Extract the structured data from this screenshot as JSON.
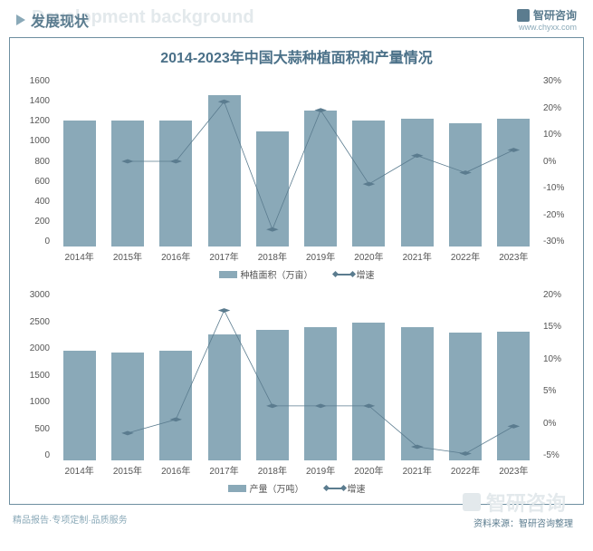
{
  "header": {
    "title": "发展现状",
    "bg_text": "Development background",
    "brand_name": "智研咨询",
    "brand_url": "www.chyxx.com"
  },
  "main_title": "2014-2023年中国大蒜种植面积和产量情况",
  "categories": [
    "2014年",
    "2015年",
    "2016年",
    "2017年",
    "2018年",
    "2019年",
    "2020年",
    "2021年",
    "2022年",
    "2023年"
  ],
  "chart_top": {
    "type": "bar+line",
    "bar_label": "种植面积（万亩）",
    "line_label": "增速",
    "y_left": {
      "min": 0,
      "max": 1600,
      "step": 200,
      "ticks": [
        "1600",
        "1400",
        "1200",
        "1000",
        "800",
        "600",
        "400",
        "200",
        "0"
      ]
    },
    "y_right": {
      "min": -30,
      "max": 30,
      "step": 10,
      "ticks": [
        "30%",
        "20%",
        "10%",
        "0%",
        "-10%",
        "-20%",
        "-30%"
      ]
    },
    "bar_color": "#8aa9b8",
    "line_color": "#5b7c8f",
    "bar_values": [
      1180,
      1180,
      1180,
      1420,
      1080,
      1280,
      1180,
      1200,
      1160,
      1200
    ],
    "line_values_pct": [
      null,
      0,
      0,
      21,
      -24,
      18,
      -8,
      2,
      -4,
      4
    ]
  },
  "chart_bottom": {
    "type": "bar+line",
    "bar_label": "产量（万吨）",
    "line_label": "增速",
    "y_left": {
      "min": 0,
      "max": 3000,
      "step": 500,
      "ticks": [
        "3000",
        "2500",
        "2000",
        "1500",
        "1000",
        "500",
        "0"
      ]
    },
    "y_right": {
      "min": -5,
      "max": 20,
      "step": 5,
      "ticks": [
        "20%",
        "15%",
        "10%",
        "5%",
        "0%",
        "-5%"
      ]
    },
    "bar_color": "#8aa9b8",
    "line_color": "#5b7c8f",
    "bar_values": [
      1930,
      1900,
      1930,
      2220,
      2300,
      2350,
      2420,
      2350,
      2250,
      2260
    ],
    "line_values_pct": [
      null,
      -1,
      1,
      17,
      3,
      3,
      3,
      -3,
      -4,
      0
    ]
  },
  "watermark_text": "智研咨询",
  "source_text": "资料来源：智研咨询整理",
  "footer": "精品报告·专项定制·品质服务"
}
